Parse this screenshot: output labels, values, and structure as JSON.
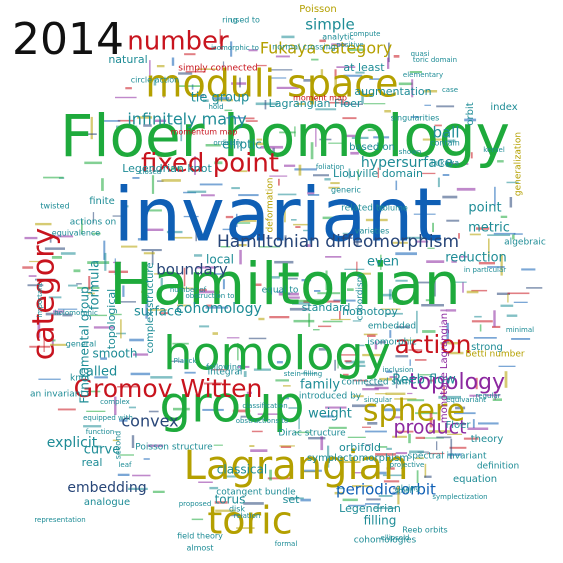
{
  "year_label": "2014",
  "palette": {
    "blue": "#0f5fb5",
    "green": "#1eaa3c",
    "red": "#c8141e",
    "olive": "#b4a000",
    "purple": "#8c28a0",
    "teal": "#1e8c96",
    "navy": "#284678"
  },
  "words": [
    {
      "text": "invariant",
      "color": "blue"
    },
    {
      "text": "Floer homology",
      "color": "green"
    },
    {
      "text": "Hamiltonian",
      "color": "green"
    },
    {
      "text": "homology",
      "color": "green"
    },
    {
      "text": "group",
      "color": "green"
    },
    {
      "text": "moduli space",
      "color": "olive"
    },
    {
      "text": "Lagrangian",
      "color": "olive"
    },
    {
      "text": "toric",
      "color": "olive"
    },
    {
      "text": "fixed point",
      "color": "red"
    },
    {
      "text": "Gromov Witten",
      "color": "red"
    },
    {
      "text": "category",
      "color": "red"
    },
    {
      "text": "sphere",
      "color": "olive"
    },
    {
      "text": "action",
      "color": "red"
    },
    {
      "text": "number",
      "color": "red"
    },
    {
      "text": "topology",
      "color": "purple"
    },
    {
      "text": "product",
      "color": "purple"
    },
    {
      "text": "Hamiltonian diffeomorphism",
      "color": "navy"
    },
    {
      "text": "Fukaya category",
      "color": "olive"
    },
    {
      "text": "infinitely many",
      "color": "teal"
    },
    {
      "text": "boundary",
      "color": "navy"
    },
    {
      "text": "cohomology",
      "color": "teal"
    },
    {
      "text": "convex",
      "color": "navy"
    },
    {
      "text": "periodic orbit",
      "color": "blue"
    },
    {
      "text": "embedding",
      "color": "navy"
    },
    {
      "text": "surface",
      "color": "teal"
    },
    {
      "text": "Reeb flow",
      "color": "teal"
    },
    {
      "text": "reduction",
      "color": "teal"
    },
    {
      "text": "even",
      "color": "teal"
    },
    {
      "text": "hypersurface",
      "color": "teal"
    },
    {
      "text": "ball",
      "color": "teal"
    },
    {
      "text": "simple",
      "color": "teal"
    },
    {
      "text": "family",
      "color": "teal"
    },
    {
      "text": "explicit",
      "color": "teal"
    },
    {
      "text": "curve",
      "color": "teal"
    },
    {
      "text": "called",
      "color": "teal"
    },
    {
      "text": "classical",
      "color": "teal"
    },
    {
      "text": "torus",
      "color": "teal"
    },
    {
      "text": "weight",
      "color": "teal"
    },
    {
      "text": "formula",
      "color": "teal"
    },
    {
      "text": "local",
      "color": "teal"
    },
    {
      "text": "metric",
      "color": "teal"
    },
    {
      "text": "point",
      "color": "teal"
    },
    {
      "text": "smooth",
      "color": "teal"
    },
    {
      "text": "set",
      "color": "teal"
    },
    {
      "text": "filling",
      "color": "teal"
    },
    {
      "text": "tie group",
      "color": "teal"
    },
    {
      "text": "Lagrangian Floer",
      "color": "teal"
    },
    {
      "text": "Legendrian knot",
      "color": "teal"
    },
    {
      "text": "Liouville domain",
      "color": "teal"
    },
    {
      "text": "elliptic",
      "color": "teal"
    },
    {
      "text": "standard",
      "color": "teal"
    },
    {
      "text": "homotopy",
      "color": "teal"
    },
    {
      "text": "orbifold",
      "color": "teal"
    },
    {
      "text": "Legendrian",
      "color": "teal"
    },
    {
      "text": "augmentation",
      "color": "teal"
    },
    {
      "text": "at least",
      "color": "teal"
    },
    {
      "text": "natural",
      "color": "teal"
    },
    {
      "text": "topological",
      "color": "teal"
    },
    {
      "text": "Fundamental group",
      "color": "teal"
    },
    {
      "text": "analogue",
      "color": "teal"
    },
    {
      "text": "equation",
      "color": "teal"
    },
    {
      "text": "theory",
      "color": "teal"
    },
    {
      "text": "Floer",
      "color": "teal"
    },
    {
      "text": "real",
      "color": "teal"
    },
    {
      "text": "finite",
      "color": "teal"
    },
    {
      "text": "based on",
      "color": "teal"
    },
    {
      "text": "index",
      "color": "teal"
    },
    {
      "text": "orbit",
      "color": "teal"
    },
    {
      "text": "strong",
      "color": "teal"
    },
    {
      "text": "knot",
      "color": "teal"
    },
    {
      "text": "Poisson",
      "color": "olive"
    },
    {
      "text": "cobordism",
      "color": "teal"
    },
    {
      "text": "definition",
      "color": "teal"
    },
    {
      "text": "symplectomorphism",
      "color": "teal"
    },
    {
      "text": "Dirac structure",
      "color": "teal"
    },
    {
      "text": "cotangent bundle",
      "color": "teal"
    },
    {
      "text": "Poisson structure",
      "color": "teal"
    },
    {
      "text": "Betti number",
      "color": "olive"
    },
    {
      "text": "monotone Lagrangian",
      "color": "purple"
    },
    {
      "text": "introduced by",
      "color": "teal"
    },
    {
      "text": "complex structure",
      "color": "teal"
    },
    {
      "text": "related to",
      "color": "teal"
    },
    {
      "text": "equal to",
      "color": "teal"
    },
    {
      "text": "connected sum",
      "color": "teal"
    },
    {
      "text": "isomorphic",
      "color": "teal"
    },
    {
      "text": "embedded",
      "color": "teal"
    },
    {
      "text": "integral",
      "color": "teal"
    },
    {
      "text": "deformation",
      "color": "olive"
    },
    {
      "text": "algebraic",
      "color": "teal"
    },
    {
      "text": "generalization",
      "color": "olive"
    },
    {
      "text": "generic",
      "color": "teal"
    },
    {
      "text": "actions on",
      "color": "teal"
    },
    {
      "text": "equivalence",
      "color": "teal"
    },
    {
      "text": "twisted",
      "color": "teal"
    },
    {
      "text": "moment map",
      "color": "red"
    },
    {
      "text": "circle action",
      "color": "teal"
    },
    {
      "text": "simply connected",
      "color": "red"
    },
    {
      "text": "momentum map",
      "color": "red"
    },
    {
      "text": "singularities",
      "color": "teal"
    },
    {
      "text": "spectral invariant",
      "color": "teal"
    },
    {
      "text": "cohomologies",
      "color": "teal"
    },
    {
      "text": "an invariant",
      "color": "teal"
    },
    {
      "text": "following",
      "color": "teal"
    },
    {
      "text": "gluing",
      "color": "teal"
    },
    {
      "text": "general",
      "color": "teal"
    },
    {
      "text": "second",
      "color": "teal"
    },
    {
      "text": "representation",
      "color": "teal"
    },
    {
      "text": "field theory",
      "color": "teal"
    },
    {
      "text": "almost",
      "color": "teal"
    },
    {
      "text": "Reeb orbits",
      "color": "teal"
    },
    {
      "text": "disk",
      "color": "teal"
    },
    {
      "text": "formal",
      "color": "teal"
    },
    {
      "text": "ellipsoid",
      "color": "teal"
    },
    {
      "text": "Fukaya",
      "color": "teal"
    },
    {
      "text": "contain",
      "color": "teal"
    },
    {
      "text": "varieties",
      "color": "teal"
    },
    {
      "text": "volume",
      "color": "teal"
    },
    {
      "text": "ring",
      "color": "teal"
    },
    {
      "text": "used to",
      "color": "teal"
    },
    {
      "text": "analytic",
      "color": "teal"
    },
    {
      "text": "normal crossing",
      "color": "teal"
    },
    {
      "text": "positive",
      "color": "teal"
    },
    {
      "text": "compute",
      "color": "teal"
    },
    {
      "text": "proposed",
      "color": "teal"
    },
    {
      "text": "equipped with",
      "color": "teal"
    },
    {
      "text": "Planck",
      "color": "teal"
    },
    {
      "text": "singular",
      "color": "teal"
    },
    {
      "text": "minimal",
      "color": "teal"
    },
    {
      "text": "symplectization",
      "color": "teal"
    },
    {
      "text": "ordinary",
      "color": "teal"
    },
    {
      "text": "hold",
      "color": "teal"
    },
    {
      "text": "important",
      "color": "teal"
    },
    {
      "text": "in particular",
      "color": "teal"
    },
    {
      "text": "case",
      "color": "teal"
    },
    {
      "text": "closed",
      "color": "teal"
    },
    {
      "text": "function",
      "color": "teal"
    },
    {
      "text": "foliation",
      "color": "teal"
    },
    {
      "text": "holomorphic",
      "color": "teal"
    },
    {
      "text": "quasi",
      "color": "teal"
    },
    {
      "text": "complex",
      "color": "teal"
    },
    {
      "text": "regular",
      "color": "teal"
    },
    {
      "text": "relation",
      "color": "teal"
    },
    {
      "text": "classification",
      "color": "teal"
    },
    {
      "text": "obstructions to",
      "color": "teal"
    },
    {
      "text": "obstruction to",
      "color": "teal"
    },
    {
      "text": "isomorphic to",
      "color": "teal"
    },
    {
      "text": "toric domain",
      "color": "teal"
    },
    {
      "text": "elementary",
      "color": "teal"
    },
    {
      "text": "equivariant",
      "color": "teal"
    },
    {
      "text": "projective",
      "color": "teal"
    },
    {
      "text": "shown",
      "color": "teal"
    },
    {
      "text": "number of",
      "color": "teal"
    },
    {
      "text": "leaf",
      "color": "teal"
    },
    {
      "text": "kernel",
      "color": "teal"
    },
    {
      "text": "small",
      "color": "teal"
    },
    {
      "text": "stein filling",
      "color": "teal"
    },
    {
      "text": "inclusion",
      "color": "teal"
    },
    {
      "text": "monotone",
      "color": "teal"
    }
  ]
}
